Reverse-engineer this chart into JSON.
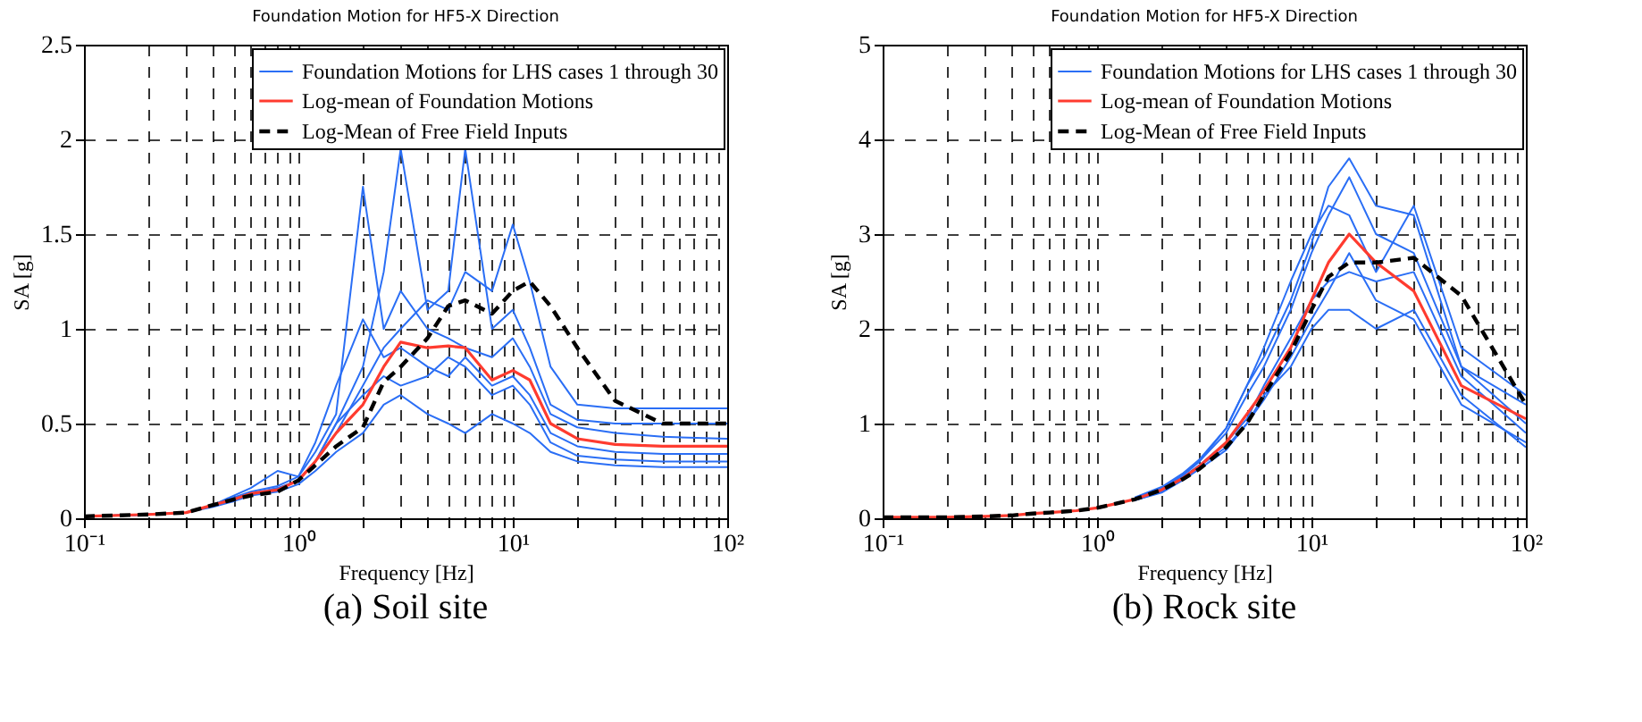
{
  "chart_data": [
    {
      "type": "line",
      "title": "Foundation Motion for HF5-X Direction",
      "xlabel": "Frequency [Hz]",
      "ylabel": "SA [g]",
      "annotations": [
        "(a)   Soil site"
      ],
      "x": [
        0.1,
        0.2,
        0.3,
        0.4,
        0.5,
        0.6,
        0.8,
        1,
        1.2,
        1.5,
        2,
        2.5,
        3,
        4,
        5,
        6,
        8,
        10,
        12,
        15,
        20,
        30,
        50,
        100
      ],
      "series": [
        {
          "name": "Foundation Motions for LHS cases 1 through 30",
          "color": "#2a6ef5",
          "values": [
            0.01,
            0.02,
            0.03,
            0.07,
            0.11,
            0.14,
            0.17,
            0.22,
            0.35,
            0.55,
            1.75,
            1.0,
            1.2,
            1.0,
            0.95,
            0.9,
            0.85,
            0.95,
            0.8,
            0.55,
            0.48,
            0.45,
            0.43,
            0.42
          ]
        },
        {
          "color": "#2a6ef5",
          "values": [
            0.01,
            0.02,
            0.03,
            0.07,
            0.1,
            0.13,
            0.15,
            0.2,
            0.3,
            0.5,
            0.8,
            1.3,
            1.95,
            1.1,
            1.2,
            1.95,
            1.0,
            1.1,
            0.9,
            0.6,
            0.52,
            0.5,
            0.5,
            0.5
          ]
        },
        {
          "color": "#2a6ef5",
          "values": [
            0.01,
            0.02,
            0.03,
            0.07,
            0.1,
            0.13,
            0.16,
            0.2,
            0.3,
            0.45,
            0.7,
            0.9,
            1.0,
            1.15,
            1.1,
            1.3,
            1.2,
            1.55,
            1.25,
            0.8,
            0.6,
            0.58,
            0.58,
            0.58
          ]
        },
        {
          "color": "#2a6ef5",
          "values": [
            0.01,
            0.02,
            0.03,
            0.06,
            0.09,
            0.12,
            0.14,
            0.18,
            0.25,
            0.35,
            0.45,
            0.6,
            0.65,
            0.55,
            0.5,
            0.45,
            0.55,
            0.5,
            0.45,
            0.35,
            0.3,
            0.28,
            0.27,
            0.27
          ]
        },
        {
          "color": "#2a6ef5",
          "values": [
            0.01,
            0.02,
            0.03,
            0.07,
            0.12,
            0.16,
            0.25,
            0.22,
            0.4,
            0.7,
            1.05,
            0.85,
            0.9,
            0.8,
            0.75,
            0.85,
            0.7,
            0.75,
            0.65,
            0.45,
            0.38,
            0.35,
            0.34,
            0.34
          ]
        },
        {
          "color": "#2a6ef5",
          "values": [
            0.01,
            0.02,
            0.03,
            0.07,
            0.1,
            0.13,
            0.15,
            0.2,
            0.3,
            0.5,
            0.65,
            0.75,
            0.7,
            0.75,
            0.85,
            0.8,
            0.65,
            0.7,
            0.6,
            0.4,
            0.33,
            0.31,
            0.3,
            0.3
          ]
        },
        {
          "name": "Log-mean of Foundation Motions",
          "color": "#ff3b2f",
          "values": [
            0.01,
            0.02,
            0.03,
            0.07,
            0.1,
            0.13,
            0.15,
            0.2,
            0.3,
            0.45,
            0.6,
            0.8,
            0.93,
            0.9,
            0.91,
            0.9,
            0.73,
            0.78,
            0.73,
            0.5,
            0.42,
            0.39,
            0.38,
            0.38
          ]
        },
        {
          "name": "Log-Mean of Free Field Inputs",
          "color": "#000000",
          "line_style": "dashed",
          "values": [
            0.01,
            0.02,
            0.03,
            0.07,
            0.1,
            0.12,
            0.14,
            0.2,
            0.28,
            0.38,
            0.48,
            0.72,
            0.8,
            0.95,
            1.12,
            1.15,
            1.08,
            1.2,
            1.25,
            1.12,
            0.9,
            0.62,
            0.5,
            0.5
          ]
        }
      ],
      "xlim": [
        0.1,
        100
      ],
      "ylim": [
        0,
        2.5
      ],
      "xticks": [
        {
          "value": 0.1,
          "label": "10⁻¹"
        },
        {
          "value": 0.2,
          "label": null
        },
        {
          "value": 0.3,
          "label": null
        },
        {
          "value": 0.4,
          "label": null
        },
        {
          "value": 0.5,
          "label": null
        },
        {
          "value": 0.6,
          "label": null
        },
        {
          "value": 0.7,
          "label": null
        },
        {
          "value": 0.8,
          "label": null
        },
        {
          "value": 0.9,
          "label": null
        },
        {
          "value": 1,
          "label": "10⁰"
        },
        {
          "value": 2,
          "label": null
        },
        {
          "value": 3,
          "label": null
        },
        {
          "value": 4,
          "label": null
        },
        {
          "value": 5,
          "label": null
        },
        {
          "value": 6,
          "label": null
        },
        {
          "value": 7,
          "label": null
        },
        {
          "value": 8,
          "label": null
        },
        {
          "value": 9,
          "label": null
        },
        {
          "value": 10,
          "label": "10¹"
        },
        {
          "value": 20,
          "label": null
        },
        {
          "value": 30,
          "label": null
        },
        {
          "value": 40,
          "label": null
        },
        {
          "value": 50,
          "label": null
        },
        {
          "value": 60,
          "label": null
        },
        {
          "value": 70,
          "label": null
        },
        {
          "value": 80,
          "label": null
        },
        {
          "value": 90,
          "label": null
        },
        {
          "value": 100,
          "label": "10²"
        }
      ],
      "yticks": [
        0,
        0.5,
        1,
        1.5,
        2,
        2.5
      ],
      "log": "x",
      "grid": true,
      "legend": "top right"
    },
    {
      "type": "line",
      "title": "Foundation Motion for HF5-X Direction",
      "xlabel": "Frequency [Hz]",
      "ylabel": "SA [g]",
      "annotations": [
        "(b) Rock site"
      ],
      "x": [
        0.1,
        0.2,
        0.3,
        0.4,
        0.5,
        0.6,
        0.8,
        1,
        1.2,
        1.5,
        2,
        2.5,
        3,
        4,
        5,
        6,
        8,
        10,
        12,
        15,
        20,
        30,
        50,
        100
      ],
      "series": [
        {
          "name": "Foundation Motions for LHS cases 1 through 30",
          "color": "#2a6ef5",
          "values": [
            null,
            null,
            null,
            null,
            null,
            null,
            null,
            null,
            null,
            0.21,
            0.32,
            0.45,
            0.6,
            0.95,
            1.4,
            1.7,
            2.3,
            2.9,
            3.5,
            3.8,
            3.3,
            3.2,
            1.6,
            1.2
          ]
        },
        {
          "color": "#2a6ef5",
          "values": [
            null,
            null,
            null,
            null,
            null,
            null,
            null,
            null,
            null,
            0.19,
            0.28,
            0.42,
            0.55,
            0.75,
            1.0,
            1.3,
            1.6,
            2.0,
            2.2,
            2.2,
            2.0,
            2.2,
            1.3,
            0.75
          ]
        },
        {
          "color": "#2a6ef5",
          "values": [
            null,
            null,
            null,
            null,
            null,
            null,
            null,
            null,
            null,
            0.21,
            0.31,
            0.45,
            0.6,
            0.9,
            1.3,
            1.6,
            2.2,
            2.8,
            3.2,
            3.6,
            3.0,
            2.8,
            1.6,
            1.0
          ]
        },
        {
          "color": "#2a6ef5",
          "values": [
            null,
            null,
            null,
            null,
            null,
            null,
            null,
            null,
            null,
            0.2,
            0.29,
            0.43,
            0.56,
            0.8,
            1.05,
            1.4,
            1.9,
            2.3,
            2.5,
            2.6,
            2.5,
            2.6,
            1.5,
            0.9
          ]
        },
        {
          "color": "#2a6ef5",
          "values": [
            null,
            null,
            null,
            null,
            null,
            null,
            null,
            null,
            null,
            0.22,
            0.33,
            0.47,
            0.62,
            0.95,
            1.4,
            1.8,
            2.5,
            3.0,
            3.3,
            3.2,
            2.6,
            3.3,
            1.8,
            1.3
          ]
        },
        {
          "color": "#2a6ef5",
          "values": [
            null,
            null,
            null,
            null,
            null,
            null,
            null,
            null,
            null,
            0.19,
            0.27,
            0.4,
            0.52,
            0.72,
            1.0,
            1.25,
            1.7,
            2.1,
            2.4,
            2.8,
            2.3,
            2.1,
            1.2,
            0.8
          ]
        },
        {
          "name": "Log-mean of Foundation Motions",
          "color": "#ff3b2f",
          "values": [
            0.01,
            0.01,
            0.02,
            0.03,
            0.05,
            0.06,
            0.08,
            0.11,
            0.15,
            0.2,
            0.3,
            0.42,
            0.55,
            0.8,
            1.1,
            1.35,
            1.8,
            2.3,
            2.7,
            3.0,
            2.7,
            2.4,
            1.4,
            1.05
          ]
        },
        {
          "name": "Log-Mean of Free Field Inputs",
          "color": "#000000",
          "line_style": "dashed",
          "values": [
            0.01,
            0.01,
            0.02,
            0.03,
            0.05,
            0.06,
            0.08,
            0.11,
            0.15,
            0.2,
            0.3,
            0.41,
            0.52,
            0.75,
            1.0,
            1.3,
            1.75,
            2.2,
            2.55,
            2.7,
            2.7,
            2.75,
            2.35,
            1.2
          ]
        }
      ],
      "xlim": [
        0.1,
        100
      ],
      "ylim": [
        0,
        5
      ],
      "xticks": [
        {
          "value": 0.1,
          "label": "10⁻¹"
        },
        {
          "value": 0.2,
          "label": null
        },
        {
          "value": 0.3,
          "label": null
        },
        {
          "value": 0.4,
          "label": null
        },
        {
          "value": 0.5,
          "label": null
        },
        {
          "value": 0.6,
          "label": null
        },
        {
          "value": 0.7,
          "label": null
        },
        {
          "value": 0.8,
          "label": null
        },
        {
          "value": 0.9,
          "label": null
        },
        {
          "value": 1,
          "label": "10⁰"
        },
        {
          "value": 2,
          "label": null
        },
        {
          "value": 3,
          "label": null
        },
        {
          "value": 4,
          "label": null
        },
        {
          "value": 5,
          "label": null
        },
        {
          "value": 6,
          "label": null
        },
        {
          "value": 7,
          "label": null
        },
        {
          "value": 8,
          "label": null
        },
        {
          "value": 9,
          "label": null
        },
        {
          "value": 10,
          "label": "10¹"
        },
        {
          "value": 20,
          "label": null
        },
        {
          "value": 30,
          "label": null
        },
        {
          "value": 40,
          "label": null
        },
        {
          "value": 50,
          "label": null
        },
        {
          "value": 60,
          "label": null
        },
        {
          "value": 70,
          "label": null
        },
        {
          "value": 80,
          "label": null
        },
        {
          "value": 90,
          "label": null
        },
        {
          "value": 100,
          "label": "10²"
        }
      ],
      "yticks": [
        0,
        1,
        2,
        3,
        4,
        5
      ],
      "log": "x",
      "grid": true,
      "legend": "top right"
    }
  ]
}
